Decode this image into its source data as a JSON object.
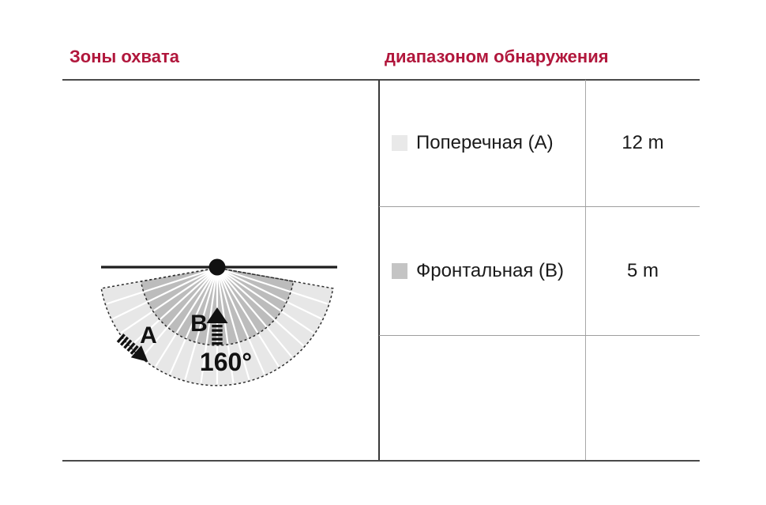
{
  "colors": {
    "accent": "#b1173c",
    "text": "#1a1a1a",
    "rule_dark": "#4a4a4a",
    "rule_light": "#9e9e9e",
    "zone_a_fill": "#e7e7e7",
    "zone_b_fill": "#bcbcbc"
  },
  "headers": {
    "left": "Зоны охвата",
    "right": "диапазоном обнаружения"
  },
  "table": {
    "rows": [
      {
        "swatch_color": "#e9e9e9",
        "label": "Поперечная (A)",
        "value": "12 m"
      },
      {
        "swatch_color": "#c4c4c4",
        "label": "Фронтальная (B)",
        "value": "5 m"
      }
    ]
  },
  "diagram": {
    "angle_label": "160°",
    "zone_a_letter": "A",
    "zone_b_letter": "B"
  }
}
